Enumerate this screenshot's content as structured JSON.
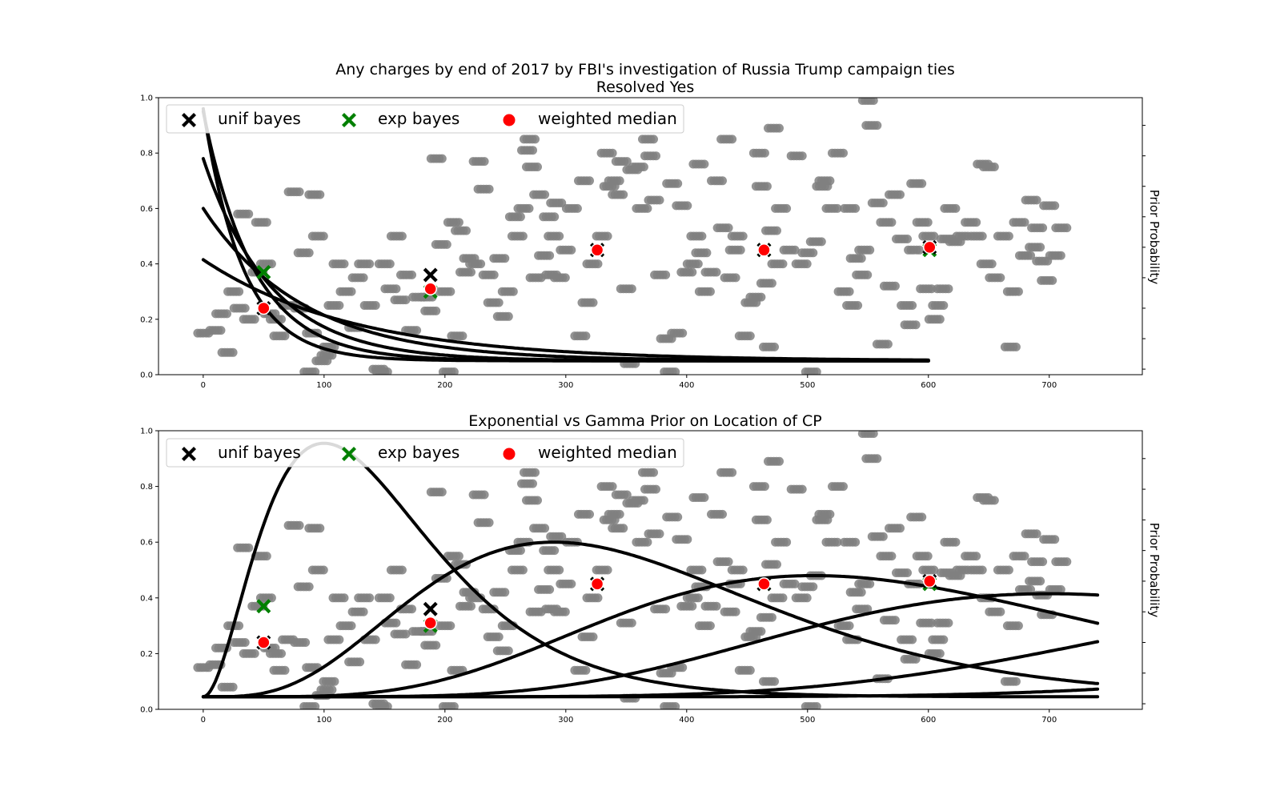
{
  "chart_data": [
    {
      "type": "scatter",
      "title": "Any charges by end of 2017 by FBI's investigation of Russia Trump campaign ties",
      "subtitle": "Resolved Yes",
      "xlabel": "",
      "ylabel": "Prior Probability",
      "xlim": [
        -37,
        777
      ],
      "ylim": [
        0,
        1
      ],
      "x_ticks": [
        "0",
        "100",
        "200",
        "300",
        "400",
        "500",
        "600",
        "700"
      ],
      "y_ticks": [
        "0.0",
        "0.2",
        "0.4",
        "0.6",
        "0.8",
        "1.0"
      ],
      "legend_position": "top-left",
      "legend": [
        "unif bayes",
        "exp bayes",
        "weighted median"
      ],
      "colors": {
        "unif_bayes": "#000000",
        "exp_bayes": "#008000",
        "weighted_median": "#ff0000",
        "observations": "#808080"
      },
      "curves": {
        "kind": "exponential",
        "x_range": [
          0,
          600
        ],
        "series": [
          {
            "scale": 33,
            "y0": 0.96,
            "floor": 0.05
          },
          {
            "scale": 42,
            "y0": 0.95,
            "floor": 0.05
          },
          {
            "scale": 56,
            "y0": 0.78,
            "floor": 0.05
          },
          {
            "scale": 83,
            "y0": 0.6,
            "floor": 0.05
          },
          {
            "scale": 125,
            "y0": 0.415,
            "floor": 0.05
          }
        ]
      },
      "unif_bayes": [
        [
          50,
          0.24
        ],
        [
          188,
          0.36
        ],
        [
          326,
          0.45
        ],
        [
          464,
          0.45
        ],
        [
          601,
          0.46
        ]
      ],
      "exp_bayes": [
        [
          50,
          0.37
        ],
        [
          188,
          0.3
        ],
        [
          326,
          0.45
        ],
        [
          464,
          0.45
        ],
        [
          601,
          0.45
        ]
      ],
      "weighted_median": [
        [
          50,
          0.24
        ],
        [
          188,
          0.31
        ],
        [
          326,
          0.45
        ],
        [
          464,
          0.45
        ],
        [
          601,
          0.46
        ]
      ]
    },
    {
      "type": "scatter",
      "title": "Exponential vs Gamma Prior on Location of CP",
      "xlabel": "",
      "ylabel": "Prior Probability",
      "xlim": [
        -37,
        777
      ],
      "ylim": [
        0,
        1
      ],
      "x_ticks": [
        "0",
        "100",
        "200",
        "300",
        "400",
        "500",
        "600",
        "700"
      ],
      "y_ticks": [
        "0.0",
        "0.2",
        "0.4",
        "0.6",
        "0.8",
        "1.0"
      ],
      "legend_position": "top-left",
      "legend": [
        "unif bayes",
        "exp bayes",
        "weighted median"
      ],
      "colors": {
        "unif_bayes": "#000000",
        "exp_bayes": "#008000",
        "weighted_median": "#ff0000",
        "observations": "#808080"
      },
      "curves": {
        "kind": "gamma",
        "x_range": [
          0,
          740
        ],
        "series": [
          {
            "mode": 100,
            "peak": 0.955,
            "shape": 2,
            "floor": 0.045
          },
          {
            "mode": 290,
            "peak": 0.6,
            "shape": 4,
            "floor": 0.045
          },
          {
            "mode": 505,
            "peak": 0.48,
            "shape": 6,
            "floor": 0.045
          },
          {
            "mode": 700,
            "peak": 0.415,
            "shape": 8,
            "floor": 0.045
          },
          {
            "mode": 1100,
            "peak": 0.44,
            "shape": 10,
            "floor": 0.045
          },
          {
            "mode": 1600,
            "peak": 0.5,
            "shape": 12,
            "floor": 0.045
          }
        ]
      },
      "unif_bayes": [
        [
          50,
          0.24
        ],
        [
          188,
          0.36
        ],
        [
          326,
          0.45
        ],
        [
          464,
          0.45
        ],
        [
          601,
          0.46
        ]
      ],
      "exp_bayes": [
        [
          50,
          0.37
        ],
        [
          188,
          0.3
        ],
        [
          326,
          0.45
        ],
        [
          464,
          0.45
        ],
        [
          601,
          0.45
        ]
      ],
      "weighted_median": [
        [
          50,
          0.24
        ],
        [
          188,
          0.31
        ],
        [
          326,
          0.45
        ],
        [
          464,
          0.45
        ],
        [
          601,
          0.46
        ]
      ]
    }
  ],
  "observations": [
    [
      0,
      0.15
    ],
    [
      10,
      0.16
    ],
    [
      15,
      0.22
    ],
    [
      20,
      0.08
    ],
    [
      25,
      0.3
    ],
    [
      30,
      0.24
    ],
    [
      33,
      0.58
    ],
    [
      38,
      0.2
    ],
    [
      45,
      0.37
    ],
    [
      48,
      0.55
    ],
    [
      52,
      0.4
    ],
    [
      55,
      0.22
    ],
    [
      60,
      0.2
    ],
    [
      63,
      0.14
    ],
    [
      70,
      0.25
    ],
    [
      75,
      0.66
    ],
    [
      80,
      0.24
    ],
    [
      83,
      0.44
    ],
    [
      88,
      0.01
    ],
    [
      90,
      0.15
    ],
    [
      92,
      0.65
    ],
    [
      95,
      0.5
    ],
    [
      98,
      0.05
    ],
    [
      102,
      0.07
    ],
    [
      104,
      0.1
    ],
    [
      108,
      0.25
    ],
    [
      112,
      0.4
    ],
    [
      118,
      0.3
    ],
    [
      125,
      0.17
    ],
    [
      128,
      0.35
    ],
    [
      133,
      0.4
    ],
    [
      138,
      0.25
    ],
    [
      145,
      0.02
    ],
    [
      148,
      0.01
    ],
    [
      150,
      0.4
    ],
    [
      155,
      0.31
    ],
    [
      160,
      0.5
    ],
    [
      163,
      0.27
    ],
    [
      168,
      0.36
    ],
    [
      172,
      0.16
    ],
    [
      178,
      0.28
    ],
    [
      185,
      0.28
    ],
    [
      188,
      0.23
    ],
    [
      193,
      0.78
    ],
    [
      197,
      0.47
    ],
    [
      200,
      0.3
    ],
    [
      203,
      0.01
    ],
    [
      207,
      0.55
    ],
    [
      210,
      0.14
    ],
    [
      213,
      0.52
    ],
    [
      217,
      0.37
    ],
    [
      220,
      0.42
    ],
    [
      225,
      0.4
    ],
    [
      228,
      0.77
    ],
    [
      232,
      0.67
    ],
    [
      236,
      0.36
    ],
    [
      240,
      0.26
    ],
    [
      245,
      0.42
    ],
    [
      248,
      0.21
    ],
    [
      252,
      0.3
    ],
    [
      258,
      0.57
    ],
    [
      260,
      0.5
    ],
    [
      265,
      0.6
    ],
    [
      268,
      0.81
    ],
    [
      270,
      0.85
    ],
    [
      272,
      0.75
    ],
    [
      275,
      0.35
    ],
    [
      278,
      0.65
    ],
    [
      282,
      0.43
    ],
    [
      286,
      0.57
    ],
    [
      288,
      0.36
    ],
    [
      290,
      0.5
    ],
    [
      292,
      0.62
    ],
    [
      295,
      0.35
    ],
    [
      300,
      0.45
    ],
    [
      305,
      0.6
    ],
    [
      312,
      0.14
    ],
    [
      315,
      0.7
    ],
    [
      318,
      0.26
    ],
    [
      322,
      0.4
    ],
    [
      330,
      0.5
    ],
    [
      334,
      0.8
    ],
    [
      336,
      0.68
    ],
    [
      340,
      0.7
    ],
    [
      343,
      0.65
    ],
    [
      346,
      0.77
    ],
    [
      350,
      0.31
    ],
    [
      353,
      0.04
    ],
    [
      355,
      0.74
    ],
    [
      360,
      0.75
    ],
    [
      363,
      0.6
    ],
    [
      368,
      0.85
    ],
    [
      370,
      0.79
    ],
    [
      373,
      0.63
    ],
    [
      378,
      0.36
    ],
    [
      383,
      0.13
    ],
    [
      386,
      0.01
    ],
    [
      388,
      0.69
    ],
    [
      392,
      0.15
    ],
    [
      396,
      0.61
    ],
    [
      400,
      0.37
    ],
    [
      405,
      0.4
    ],
    [
      408,
      0.5
    ],
    [
      410,
      0.76
    ],
    [
      412,
      0.44
    ],
    [
      415,
      0.3
    ],
    [
      420,
      0.37
    ],
    [
      425,
      0.7
    ],
    [
      430,
      0.53
    ],
    [
      433,
      0.85
    ],
    [
      436,
      0.35
    ],
    [
      440,
      0.45
    ],
    [
      442,
      0.5
    ],
    [
      448,
      0.14
    ],
    [
      453,
      0.26
    ],
    [
      457,
      0.28
    ],
    [
      460,
      0.8
    ],
    [
      462,
      0.68
    ],
    [
      466,
      0.33
    ],
    [
      468,
      0.1
    ],
    [
      470,
      0.52
    ],
    [
      472,
      0.89
    ],
    [
      475,
      0.4
    ],
    [
      478,
      0.6
    ],
    [
      485,
      0.45
    ],
    [
      491,
      0.79
    ],
    [
      495,
      0.4
    ],
    [
      500,
      0.44
    ],
    [
      503,
      0.01
    ],
    [
      507,
      0.48
    ],
    [
      512,
      0.68
    ],
    [
      514,
      0.7
    ],
    [
      520,
      0.6
    ],
    [
      525,
      0.8
    ],
    [
      530,
      0.3
    ],
    [
      535,
      0.6
    ],
    [
      537,
      0.25
    ],
    [
      540,
      0.42
    ],
    [
      545,
      0.36
    ],
    [
      547,
      0.45
    ],
    [
      550,
      0.99
    ],
    [
      553,
      0.9
    ],
    [
      558,
      0.62
    ],
    [
      562,
      0.11
    ],
    [
      565,
      0.55
    ],
    [
      568,
      0.32
    ],
    [
      572,
      0.65
    ],
    [
      578,
      0.49
    ],
    [
      582,
      0.25
    ],
    [
      585,
      0.18
    ],
    [
      588,
      0.45
    ],
    [
      590,
      0.69
    ],
    [
      595,
      0.55
    ],
    [
      598,
      0.31
    ],
    [
      600,
      0.5
    ],
    [
      605,
      0.2
    ],
    [
      608,
      0.25
    ],
    [
      612,
      0.31
    ],
    [
      615,
      0.49
    ],
    [
      618,
      0.6
    ],
    [
      622,
      0.48
    ],
    [
      628,
      0.5
    ],
    [
      635,
      0.55
    ],
    [
      640,
      0.5
    ],
    [
      645,
      0.76
    ],
    [
      648,
      0.4
    ],
    [
      650,
      0.75
    ],
    [
      655,
      0.35
    ],
    [
      662,
      0.5
    ],
    [
      668,
      0.1
    ],
    [
      670,
      0.3
    ],
    [
      675,
      0.55
    ],
    [
      680,
      0.43
    ],
    [
      685,
      0.63
    ],
    [
      688,
      0.46
    ],
    [
      690,
      0.53
    ],
    [
      694,
      0.41
    ],
    [
      698,
      0.34
    ],
    [
      700,
      0.61
    ],
    [
      705,
      0.43
    ],
    [
      710,
      0.53
    ]
  ]
}
